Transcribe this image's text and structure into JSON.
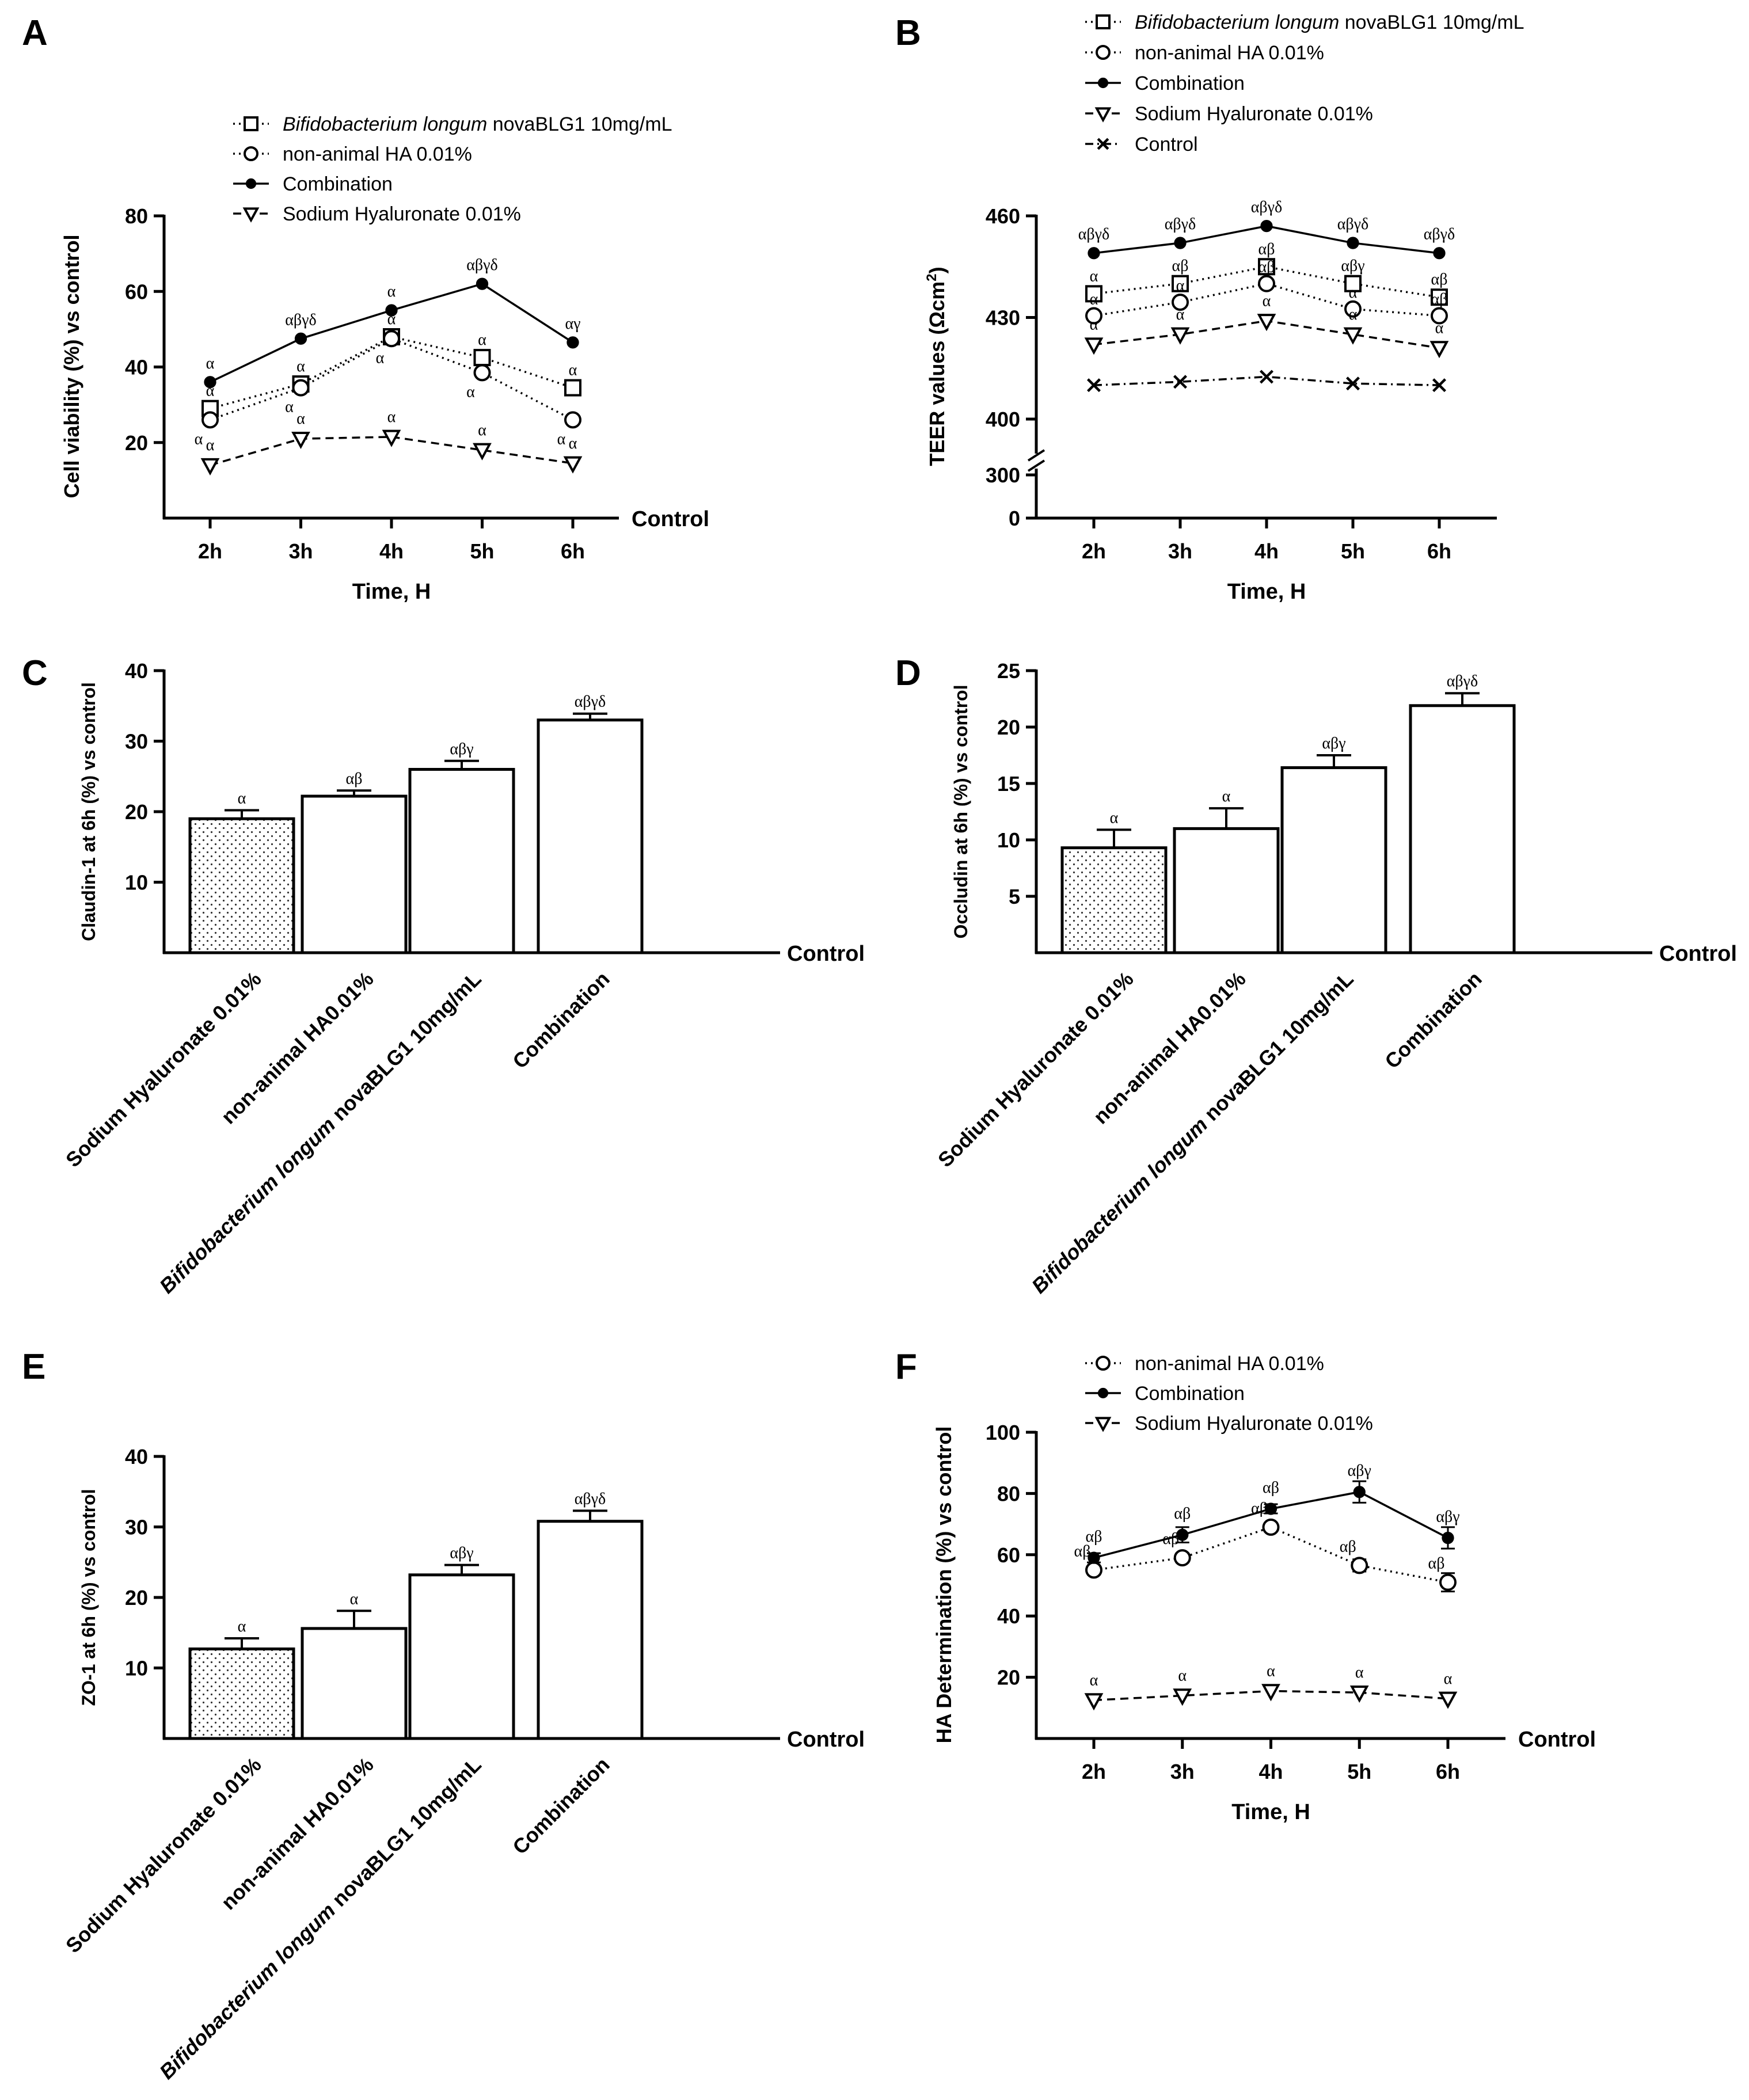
{
  "figure": {
    "panels": [
      "A",
      "B",
      "C",
      "D",
      "E",
      "F"
    ]
  },
  "chart_data": [
    {
      "panel": "A",
      "type": "line",
      "title": "",
      "xlabel": "Time, H",
      "ylabel": "Cell viability (%) vs control",
      "baseline_label": "Control",
      "categories": [
        "2h",
        "3h",
        "4h",
        "5h",
        "6h"
      ],
      "ylim": [
        0,
        80
      ],
      "yticks": [
        20,
        40,
        60,
        80
      ],
      "legend": [
        {
          "italic": "Bifidobacterium longum",
          "text": " novaBLG1 10mg/mL",
          "marker": "square-open",
          "line": "dotted"
        },
        {
          "italic": "",
          "text": "non-animal HA 0.01%",
          "marker": "circle-open",
          "line": "dotted"
        },
        {
          "italic": "",
          "text": "Combination",
          "marker": "circle-filled",
          "line": "solid"
        },
        {
          "italic": "",
          "text": "Sodium Hyaluronate 0.01%",
          "marker": "triangle-down-open",
          "line": "dashed"
        }
      ],
      "series": [
        {
          "name": "Bifidobacterium longum novaBLG1 10mg/mL",
          "marker": "square-open",
          "line": "dotted",
          "values": [
            29,
            35.5,
            48,
            42.5,
            34.5
          ],
          "annotations": [
            "α",
            "α",
            "α",
            "α",
            "α"
          ]
        },
        {
          "name": "non-animal HA 0.01%",
          "marker": "circle-open",
          "line": "dotted",
          "values": [
            26,
            34.5,
            47.5,
            38.5,
            26
          ],
          "annotations": [
            "α",
            "α",
            "α",
            "α",
            "α"
          ]
        },
        {
          "name": "Combination",
          "marker": "circle-filled",
          "line": "solid",
          "values": [
            36,
            47.5,
            55,
            62,
            46.5
          ],
          "annotations": [
            "α",
            "αβγδ",
            "α",
            "αβγδ",
            "αγ"
          ]
        },
        {
          "name": "Sodium Hyaluronate 0.01%",
          "marker": "triangle-down-open",
          "line": "dashed",
          "values": [
            14,
            21,
            21.5,
            18,
            14.5
          ],
          "annotations": [
            "α",
            "α",
            "α",
            "α",
            "α"
          ]
        }
      ]
    },
    {
      "panel": "B",
      "type": "line",
      "title": "",
      "xlabel": "Time, H",
      "ylabel_main": "TEER values (Ωcm",
      "ylabel_sup": "2",
      "ylabel_end": ")",
      "baseline_label": "",
      "categories": [
        "2h",
        "3h",
        "4h",
        "5h",
        "6h"
      ],
      "ylim": [
        380,
        460
      ],
      "broken_axis": true,
      "yticks": [
        400,
        430,
        460
      ],
      "yticks_lower": [
        0,
        300
      ],
      "legend": [
        {
          "italic": "Bifidobacterium longum",
          "text": " novaBLG1 10mg/mL",
          "marker": "square-open",
          "line": "dotted"
        },
        {
          "italic": "",
          "text": "non-animal HA 0.01%",
          "marker": "circle-open",
          "line": "dotted"
        },
        {
          "italic": "",
          "text": "Combination",
          "marker": "circle-filled",
          "line": "solid"
        },
        {
          "italic": "",
          "text": "Sodium Hyaluronate 0.01%",
          "marker": "triangle-down-open",
          "line": "dashed"
        },
        {
          "italic": "",
          "text": "Control",
          "marker": "x",
          "line": "dashdot"
        }
      ],
      "series": [
        {
          "name": "Bifidobacterium longum novaBLG1 10mg/mL",
          "marker": "square-open",
          "line": "dotted",
          "values": [
            437,
            440,
            445,
            440,
            436
          ],
          "annotations": [
            "α",
            "αβ",
            "αβ",
            "αβγ",
            "αβ"
          ]
        },
        {
          "name": "non-animal HA 0.01%",
          "marker": "circle-open",
          "line": "dotted",
          "values": [
            430.5,
            434.5,
            440,
            432.5,
            430.5
          ],
          "annotations": [
            "α",
            "α",
            "αβ",
            "α",
            "αβ"
          ]
        },
        {
          "name": "Combination",
          "marker": "circle-filled",
          "line": "solid",
          "values": [
            449,
            452,
            457,
            452,
            449
          ],
          "annotations": [
            "αβγδ",
            "αβγδ",
            "αβγδ",
            "αβγδ",
            "αβγδ"
          ]
        },
        {
          "name": "Sodium Hyaluronate 0.01%",
          "marker": "triangle-down-open",
          "line": "dashed",
          "values": [
            422,
            425,
            429,
            425,
            421
          ],
          "annotations": [
            "α",
            "α",
            "α",
            "α",
            "α"
          ]
        },
        {
          "name": "Control",
          "marker": "x",
          "line": "dashdot",
          "values": [
            410,
            411,
            412.5,
            410.5,
            410
          ],
          "annotations": [
            "",
            "",
            "",
            "",
            ""
          ]
        }
      ]
    },
    {
      "panel": "C",
      "type": "bar",
      "ylabel": "Claudin-1 at 6h (%) vs control",
      "baseline_label": "Control",
      "ylim": [
        0,
        40
      ],
      "yticks": [
        10,
        20,
        30,
        40
      ],
      "categories": [
        {
          "italic": "",
          "text": "Sodium Hyaluronate 0.01%"
        },
        {
          "italic": "",
          "text": "non-animal HA0.01%"
        },
        {
          "italic": "Bifidobacterium longum",
          "text": " novaBLG1 10mg/mL"
        },
        {
          "italic": "",
          "text": "Combination"
        }
      ],
      "values": [
        19,
        22.2,
        26,
        33
      ],
      "errors": [
        1.2,
        0.8,
        1.2,
        0.9
      ],
      "annotations": [
        "α",
        "αβ",
        "αβγ",
        "αβγδ"
      ],
      "fills": [
        "dotted",
        "white",
        "white",
        "white"
      ]
    },
    {
      "panel": "D",
      "type": "bar",
      "ylabel": "Occludin at 6h (%) vs control",
      "baseline_label": "Control",
      "ylim": [
        0,
        25
      ],
      "yticks": [
        5,
        10,
        15,
        20,
        25
      ],
      "categories": [
        {
          "italic": "",
          "text": "Sodium Hyaluronate 0.01%"
        },
        {
          "italic": "",
          "text": "non-animal HA0.01%"
        },
        {
          "italic": "Bifidobacterium longum",
          "text": " novaBLG1 10mg/mL"
        },
        {
          "italic": "",
          "text": "Combination"
        }
      ],
      "values": [
        9.3,
        11,
        16.4,
        21.9
      ],
      "errors": [
        1.6,
        1.8,
        1.1,
        1.1
      ],
      "annotations": [
        "α",
        "α",
        "αβγ",
        "αβγδ"
      ],
      "fills": [
        "dotted",
        "white",
        "white",
        "white"
      ]
    },
    {
      "panel": "E",
      "type": "bar",
      "ylabel": "ZO-1 at 6h (%) vs control",
      "baseline_label": "Control",
      "ylim": [
        0,
        40
      ],
      "yticks": [
        10,
        20,
        30,
        40
      ],
      "categories": [
        {
          "italic": "",
          "text": "Sodium Hyaluronate 0.01%"
        },
        {
          "italic": "",
          "text": "non-animal HA0.01%"
        },
        {
          "italic": "Bifidobacterium longum",
          "text": " novaBLG1 10mg/mL"
        },
        {
          "italic": "",
          "text": "Combination"
        }
      ],
      "values": [
        12.7,
        15.6,
        23.2,
        30.8
      ],
      "errors": [
        1.5,
        2.5,
        1.4,
        1.5
      ],
      "annotations": [
        "α",
        "α",
        "αβγ",
        "αβγδ"
      ],
      "fills": [
        "dotted",
        "white",
        "white",
        "white"
      ]
    },
    {
      "panel": "F",
      "type": "line",
      "title": "",
      "xlabel": "Time, H",
      "ylabel": "HA Determination (%) vs control",
      "baseline_label": "Control",
      "categories": [
        "2h",
        "3h",
        "4h",
        "5h",
        "6h"
      ],
      "ylim": [
        0,
        100
      ],
      "yticks": [
        20,
        40,
        60,
        80,
        100
      ],
      "legend": [
        {
          "italic": "",
          "text": "non-animal HA 0.01%",
          "marker": "circle-open",
          "line": "dotted"
        },
        {
          "italic": "",
          "text": "Combination",
          "marker": "circle-filled",
          "line": "solid"
        },
        {
          "italic": "",
          "text": "Sodium Hyaluronate 0.01%",
          "marker": "triangle-down-open",
          "line": "dashed"
        }
      ],
      "series": [
        {
          "name": "non-animal HA 0.01%",
          "marker": "circle-open",
          "line": "dotted",
          "values": [
            55,
            59,
            69,
            56.5,
            51
          ],
          "errors": [
            1.5,
            1.5,
            1.5,
            2,
            3
          ],
          "annotations": [
            "αβ",
            "αβ",
            "αβ",
            "αβ",
            "αβ"
          ]
        },
        {
          "name": "Combination",
          "marker": "circle-filled",
          "line": "solid",
          "values": [
            59,
            66.5,
            75,
            80.5,
            65.5
          ],
          "errors": [
            1.5,
            2.5,
            1.5,
            3.5,
            3.5
          ],
          "annotations": [
            "αβ",
            "αβ",
            "αβ",
            "αβγ",
            "αβγ"
          ]
        },
        {
          "name": "Sodium Hyaluronate 0.01%",
          "marker": "triangle-down-open",
          "line": "dashed",
          "values": [
            12.5,
            14,
            15.5,
            15,
            13
          ],
          "errors": [
            0,
            0,
            0,
            0,
            0
          ],
          "annotations": [
            "α",
            "α",
            "α",
            "α",
            "α"
          ]
        }
      ]
    }
  ]
}
